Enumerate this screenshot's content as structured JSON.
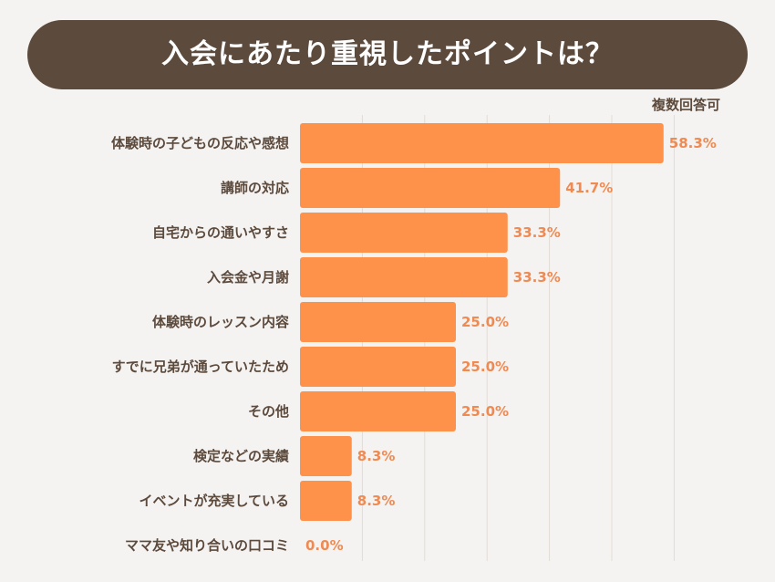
{
  "title": "入会にあたり重視したポイントは？",
  "note": "複数回答可",
  "colors": {
    "banner": "#5c4a3d",
    "bar": "#ff924b",
    "value_label": "#ef8a52",
    "category_label": "#5c4a3d",
    "grid": "#e3dcd6",
    "background": "#f5f3f1"
  },
  "chart_data": {
    "type": "bar",
    "orientation": "horizontal",
    "title": "入会にあたり重視したポイントは？",
    "annotation": "複数回答可",
    "categories": [
      "体験時の子どもの反応や感想",
      "講師の対応",
      "自宅からの通いやすさ",
      "入会金や月謝",
      "体験時のレッスン内容",
      "すでに兄弟が通っていたため",
      "その他",
      "検定などの実績",
      "イベントが充実している",
      "ママ友や知り合いの口コミ"
    ],
    "values": [
      58.3,
      41.7,
      33.3,
      33.3,
      25.0,
      25.0,
      25.0,
      8.3,
      8.3,
      0.0
    ],
    "value_labels": [
      "58.3%",
      "41.7%",
      "33.3%",
      "33.3%",
      "25.0%",
      "25.0%",
      "25.0%",
      "8.3%",
      "8.3%",
      "0.0%"
    ],
    "unit": "%",
    "xlim": [
      0,
      60
    ],
    "grid": true,
    "legend": "none"
  }
}
